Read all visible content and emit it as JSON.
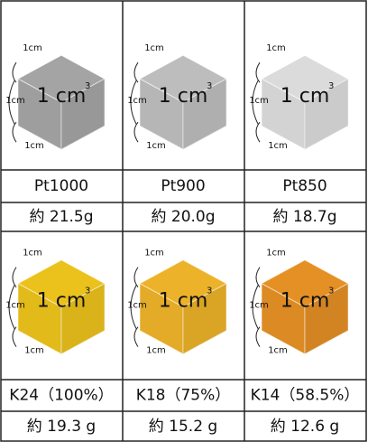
{
  "cells": [
    {
      "color": "#9e9e9e",
      "edge_labels": [
        "1cm",
        "1cm",
        "1cm"
      ],
      "volume": "1 cm",
      "volume_sup": "3",
      "name": "Pt1000",
      "weight": "約 21.5g"
    },
    {
      "color": "#b6b6b6",
      "edge_labels": [
        "1cm",
        "1cm",
        "1cm"
      ],
      "volume": "1 cm",
      "volume_sup": "3",
      "name": "Pt900",
      "weight": "約 20.0g"
    },
    {
      "color": "#d3d3d3",
      "edge_labels": [
        "1cm",
        "1cm",
        "1cm"
      ],
      "volume": "1 cm",
      "volume_sup": "3",
      "name": "Pt850",
      "weight": "約 18.7g"
    },
    {
      "color": "#e2ba1a",
      "edge_labels": [
        "1cm",
        "1cm",
        "1cm"
      ],
      "volume": "1 cm",
      "volume_sup": "3",
      "name": "K24（100%）",
      "weight": "約 19.3 g"
    },
    {
      "color": "#e3ab27",
      "edge_labels": [
        "1cm",
        "1cm",
        "1cm"
      ],
      "volume": "1 cm",
      "volume_sup": "3",
      "name": "K18（75%）",
      "weight": "約 15.2 g"
    },
    {
      "color": "#dc8a23",
      "edge_labels": [
        "1cm",
        "1cm",
        "1cm"
      ],
      "volume": "1 cm",
      "volume_sup": "3",
      "name": "K14（58.5%）",
      "weight": "約 12.6 g"
    }
  ]
}
